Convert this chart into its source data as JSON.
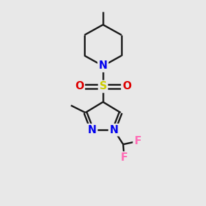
{
  "bg_color": "#e8e8e8",
  "line_color": "#1a1a1a",
  "N_color": "#0000ee",
  "S_color": "#cccc00",
  "O_color": "#dd0000",
  "F_color": "#ff69b4",
  "line_width": 1.8,
  "font_size": 11,
  "figsize": [
    3.0,
    3.0
  ],
  "dpi": 100,
  "xlim": [
    0,
    10
  ],
  "ylim": [
    0,
    10
  ]
}
